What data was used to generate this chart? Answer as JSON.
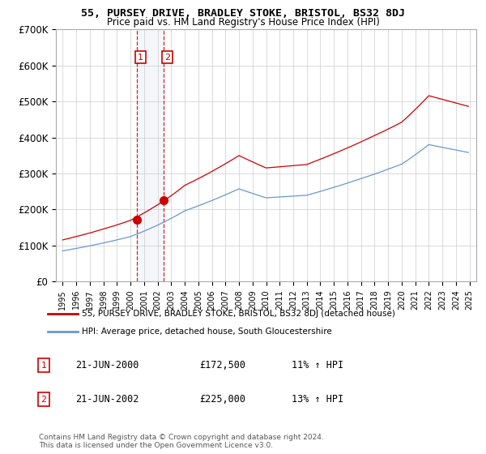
{
  "title": "55, PURSEY DRIVE, BRADLEY STOKE, BRISTOL, BS32 8DJ",
  "subtitle": "Price paid vs. HM Land Registry's House Price Index (HPI)",
  "legend_line1": "55, PURSEY DRIVE, BRADLEY STOKE, BRISTOL, BS32 8DJ (detached house)",
  "legend_line2": "HPI: Average price, detached house, South Gloucestershire",
  "footnote": "Contains HM Land Registry data © Crown copyright and database right 2024.\nThis data is licensed under the Open Government Licence v3.0.",
  "transactions": [
    {
      "id": 1,
      "date": "21-JUN-2000",
      "price": "£172,500",
      "hpi": "11% ↑ HPI",
      "year": 2000.47
    },
    {
      "id": 2,
      "date": "21-JUN-2002",
      "price": "£225,000",
      "hpi": "13% ↑ HPI",
      "year": 2002.47
    }
  ],
  "transaction_prices": [
    172500,
    225000
  ],
  "transaction_years": [
    2000.47,
    2002.47
  ],
  "price_color": "#cc0000",
  "hpi_color": "#6699cc",
  "vline_color": "#cc0000",
  "span_color": "#aabbdd",
  "background_color": "#ffffff",
  "grid_color": "#cccccc",
  "ylim": [
    0,
    700000
  ],
  "yticks": [
    0,
    100000,
    200000,
    300000,
    400000,
    500000,
    600000,
    700000
  ],
  "ytick_labels": [
    "£0",
    "£100K",
    "£200K",
    "£300K",
    "£400K",
    "£500K",
    "£600K",
    "£700K"
  ],
  "xlim_start": 1994.5,
  "xlim_end": 2025.5
}
